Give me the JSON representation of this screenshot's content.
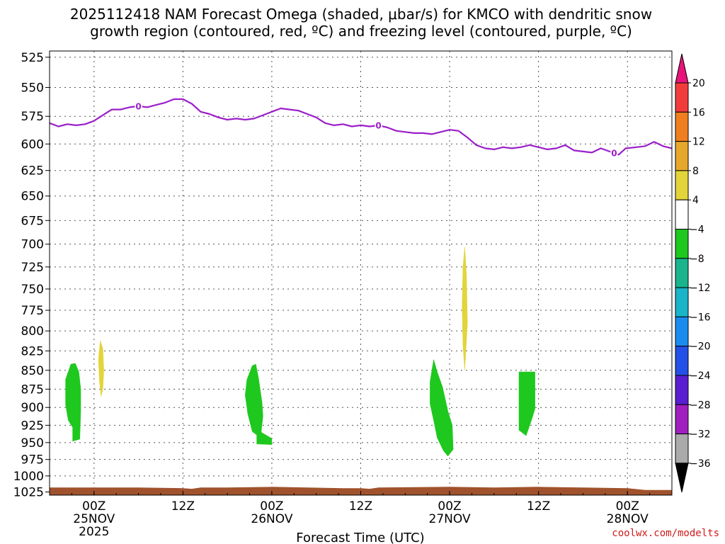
{
  "chart_data": {
    "type": "heatmap",
    "title_lines": [
      "2025112418 NAM Forecast Omega (shaded, μbar/s) for KMCO with dendritic snow",
      "growth region (contoured, red, ºC) and freezing level (contoured, purple, ºC)"
    ],
    "xlabel": "Forecast Time (UTC)",
    "credit": "coolwx.com/modelts",
    "y_axis": {
      "ticks": [
        525,
        550,
        575,
        600,
        625,
        650,
        675,
        700,
        725,
        750,
        775,
        800,
        825,
        850,
        875,
        900,
        925,
        950,
        975,
        1000,
        1025
      ],
      "range": [
        520,
        1030
      ],
      "scale": "log-pressure"
    },
    "x_axis": {
      "range_hours": [
        -5,
        65
      ],
      "ticks": [
        {
          "h": 0,
          "label": "00Z",
          "day": "25NOV",
          "year": "2025"
        },
        {
          "h": 10,
          "label": "12Z",
          "day": "",
          "year": ""
        },
        {
          "h": 20,
          "label": "00Z",
          "day": "26NOV",
          "year": ""
        },
        {
          "h": 30,
          "label": "12Z",
          "day": "",
          "year": ""
        },
        {
          "h": 40,
          "label": "00Z",
          "day": "27NOV",
          "year": ""
        },
        {
          "h": 50,
          "label": "12Z",
          "day": "",
          "year": ""
        },
        {
          "h": 60,
          "label": "00Z",
          "day": "28NOV",
          "year": ""
        }
      ]
    },
    "grid": true,
    "colorbar": {
      "levels": [
        20,
        16,
        12,
        8,
        4,
        -4,
        -8,
        -12,
        -16,
        -20,
        -24,
        -28,
        -32,
        -36
      ],
      "colors": [
        "#e8147a",
        "#f23c3c",
        "#ef7f1e",
        "#e6a82c",
        "#e3d43a",
        "#ffffff",
        "#1ec81e",
        "#19b48c",
        "#19b4c8",
        "#1a8cf0",
        "#2350e6",
        "#5a1ed2",
        "#a01ebe",
        "#aaaaaa",
        "#000000"
      ]
    },
    "freezing_level": {
      "color": "#9b1fc9",
      "label": "0",
      "label_positions": [
        5,
        32,
        58.5
      ],
      "points": [
        [
          -5,
          581
        ],
        [
          -4,
          584
        ],
        [
          -3,
          582
        ],
        [
          -2,
          583
        ],
        [
          -1,
          582
        ],
        [
          0,
          579
        ],
        [
          1,
          574
        ],
        [
          2,
          569
        ],
        [
          3,
          569
        ],
        [
          4,
          567
        ],
        [
          5,
          566
        ],
        [
          6,
          567
        ],
        [
          7,
          565
        ],
        [
          8,
          563
        ],
        [
          9,
          560
        ],
        [
          10,
          560
        ],
        [
          11,
          564
        ],
        [
          12,
          571
        ],
        [
          13,
          573
        ],
        [
          14,
          576
        ],
        [
          15,
          578
        ],
        [
          16,
          577
        ],
        [
          17,
          578
        ],
        [
          18,
          577
        ],
        [
          19,
          574
        ],
        [
          20,
          571
        ],
        [
          21,
          568
        ],
        [
          22,
          569
        ],
        [
          23,
          570
        ],
        [
          24,
          573
        ],
        [
          25,
          576
        ],
        [
          26,
          581
        ],
        [
          27,
          583
        ],
        [
          28,
          582
        ],
        [
          29,
          584
        ],
        [
          30,
          583
        ],
        [
          31,
          584
        ],
        [
          32,
          583
        ],
        [
          33,
          585
        ],
        [
          34,
          588
        ],
        [
          35,
          589
        ],
        [
          36,
          590
        ],
        [
          37,
          590
        ],
        [
          38,
          591
        ],
        [
          39,
          589
        ],
        [
          40,
          587
        ],
        [
          41,
          588
        ],
        [
          42,
          594
        ],
        [
          43,
          601
        ],
        [
          44,
          604
        ],
        [
          45,
          605
        ],
        [
          46,
          603
        ],
        [
          47,
          604
        ],
        [
          48,
          603
        ],
        [
          49,
          601
        ],
        [
          50,
          603
        ],
        [
          51,
          605
        ],
        [
          52,
          604
        ],
        [
          53,
          601
        ],
        [
          54,
          606
        ],
        [
          55,
          607
        ],
        [
          56,
          608
        ],
        [
          57,
          604
        ],
        [
          58,
          607
        ],
        [
          59,
          610
        ],
        [
          59.8,
          604
        ],
        [
          61,
          603
        ],
        [
          62,
          602
        ],
        [
          63,
          598
        ],
        [
          64,
          602
        ],
        [
          65,
          604
        ]
      ]
    },
    "omega_regions": [
      {
        "range": [
          -8,
          -4
        ],
        "color": "#1ec81e",
        "polygon": [
          [
            -2.6,
            842
          ],
          [
            -2.1,
            841
          ],
          [
            -1.7,
            852
          ],
          [
            -1.5,
            875
          ],
          [
            -1.5,
            905
          ],
          [
            -1.6,
            945
          ],
          [
            -2.4,
            948
          ],
          [
            -2.4,
            928
          ],
          [
            -2.9,
            918
          ],
          [
            -3.2,
            896
          ],
          [
            -3.2,
            862
          ]
        ]
      },
      {
        "range": [
          -8,
          -4
        ],
        "color": "#1ec81e",
        "polygon": [
          [
            17.8,
            844
          ],
          [
            18.2,
            842
          ],
          [
            18.5,
            860
          ],
          [
            18.9,
            893
          ],
          [
            19.0,
            912
          ],
          [
            18.8,
            935
          ],
          [
            20.0,
            944
          ],
          [
            20.0,
            953
          ],
          [
            18.3,
            952
          ],
          [
            18.3,
            939
          ],
          [
            17.8,
            934
          ],
          [
            17.3,
            909
          ],
          [
            17.0,
            883
          ],
          [
            17.2,
            862
          ]
        ]
      },
      {
        "range": [
          -8,
          -4
        ],
        "color": "#1ec81e",
        "polygon": [
          [
            38.2,
            836
          ],
          [
            38.6,
            852
          ],
          [
            39.2,
            872
          ],
          [
            39.8,
            905
          ],
          [
            40.3,
            925
          ],
          [
            40.4,
            960
          ],
          [
            39.8,
            970
          ],
          [
            39.3,
            962
          ],
          [
            38.6,
            943
          ],
          [
            38.2,
            918
          ],
          [
            37.8,
            895
          ],
          [
            37.8,
            865
          ]
        ]
      },
      {
        "range": [
          -8,
          -4
        ],
        "color": "#1ec81e",
        "polygon": [
          [
            47.8,
            852
          ],
          [
            49.6,
            852
          ],
          [
            49.6,
            902
          ],
          [
            49.2,
            918
          ],
          [
            48.6,
            940
          ],
          [
            47.8,
            932
          ],
          [
            47.8,
            880
          ]
        ]
      },
      {
        "range": [
          4,
          8
        ],
        "color": "#e3d43a",
        "polygon": [
          [
            0.7,
            812
          ],
          [
            1.0,
            822
          ],
          [
            1.1,
            850
          ],
          [
            1.0,
            875
          ],
          [
            0.8,
            885
          ],
          [
            0.6,
            863
          ],
          [
            0.5,
            835
          ]
        ]
      },
      {
        "range": [
          4,
          8
        ],
        "color": "#e3d43a",
        "polygon": [
          [
            41.7,
            703
          ],
          [
            41.9,
            735
          ],
          [
            42.0,
            790
          ],
          [
            41.8,
            830
          ],
          [
            41.7,
            850
          ],
          [
            41.5,
            818
          ],
          [
            41.4,
            770
          ],
          [
            41.5,
            725
          ]
        ]
      }
    ],
    "terrain": {
      "color": "#a0522d",
      "top_points": [
        [
          -5,
          1018
        ],
        [
          0,
          1018
        ],
        [
          5,
          1018
        ],
        [
          10,
          1019
        ],
        [
          11,
          1020
        ],
        [
          12,
          1018
        ],
        [
          15,
          1018
        ],
        [
          20,
          1017
        ],
        [
          24,
          1018
        ],
        [
          28,
          1019
        ],
        [
          30,
          1019
        ],
        [
          31,
          1020
        ],
        [
          32,
          1018
        ],
        [
          40,
          1017
        ],
        [
          45,
          1018
        ],
        [
          50,
          1017
        ],
        [
          55,
          1018
        ],
        [
          60,
          1019
        ],
        [
          62,
          1022
        ],
        [
          65,
          1022
        ]
      ]
    }
  }
}
